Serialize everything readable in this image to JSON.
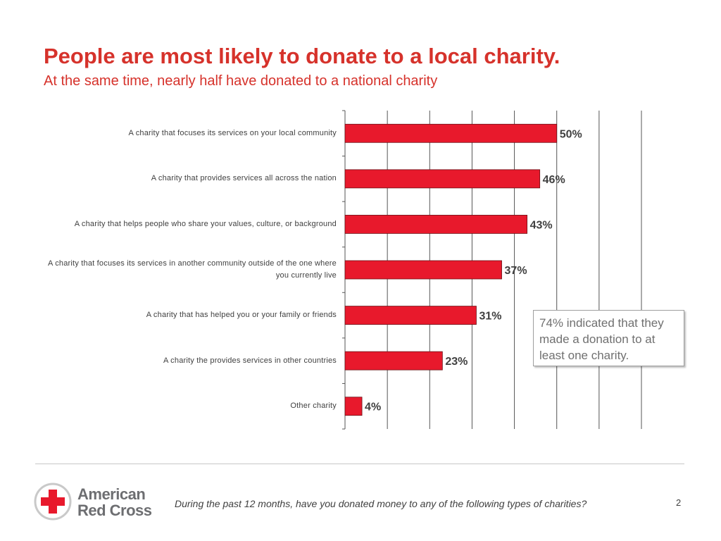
{
  "slide": {
    "title": "People are most likely to donate to a local charity.",
    "subtitle": "At the same time, nearly half have donated to a national charity",
    "callout": "74% indicated that they made a donation to at least one charity.",
    "footnote": "During the past 12 months, have you donated money to any of the following types of charities?",
    "page_number": "2",
    "logo": {
      "line1": "American",
      "line2": "Red Cross",
      "icon": "red-cross-icon"
    }
  },
  "colors": {
    "title": "#d6322b",
    "bar": "#e8192c",
    "bar_stroke": "#6b1016",
    "grid": "#555555"
  },
  "chart_data": {
    "type": "bar",
    "orientation": "horizontal",
    "categories": [
      "A charity that focuses its services on your local community",
      "A charity that provides services all across the nation",
      "A charity that helps people who share your values, culture, or background",
      "A charity that focuses its services in another community outside of the one where you currently live",
      "A charity that has helped you or your family or friends",
      "A charity the provides services in other countries",
      "Other charity"
    ],
    "values": [
      50,
      46,
      43,
      37,
      31,
      23,
      4
    ],
    "labels": [
      "50%",
      "46%",
      "43%",
      "37%",
      "31%",
      "23%",
      "4%"
    ],
    "xlim": [
      0,
      70
    ],
    "grid": true,
    "legend": "none"
  }
}
